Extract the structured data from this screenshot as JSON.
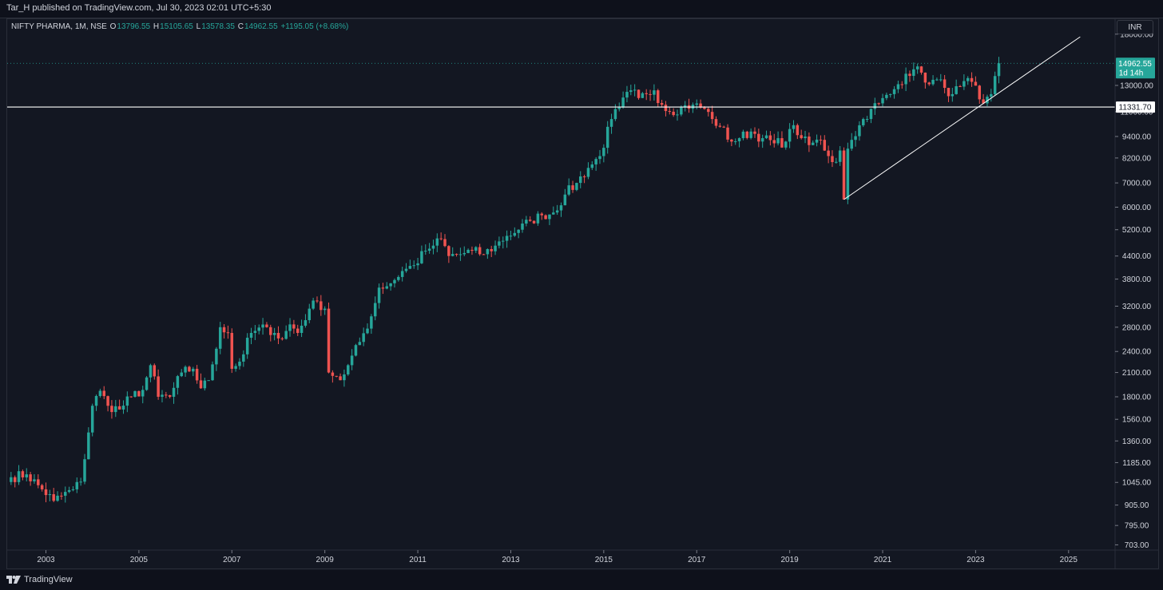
{
  "header": {
    "publish_text": "Tar_H published on TradingView.com, Jul 30, 2023 02:01 UTC+5:30"
  },
  "legend": {
    "symbol": "NIFTY PHARMA, 1M, NSE",
    "o_label": "O",
    "o_value": "13796.55",
    "h_label": "H",
    "h_value": "15105.65",
    "l_label": "L",
    "l_value": "13578.35",
    "c_label": "C",
    "c_value": "14962.55",
    "change": "+1195.05 (+8.68%)"
  },
  "currency_button": "INR",
  "footer": {
    "brand": "TradingView"
  },
  "colors": {
    "background": "#131722",
    "up": "#26a69a",
    "down": "#ef5350",
    "axis_text": "#d1d4dc",
    "line": "#ffffff"
  },
  "chart_data": {
    "type": "candlestick",
    "title": "",
    "y_scale": "log",
    "y_ticks": [
      "18000.00",
      "13000.00",
      "11000.00",
      "9400.00",
      "8200.00",
      "7000.00",
      "6000.00",
      "5200.00",
      "4400.00",
      "3800.00",
      "3200.00",
      "2800.00",
      "2400.00",
      "2100.00",
      "1800.00",
      "1560.00",
      "1360.00",
      "1185.00",
      "1045.00",
      "905.00",
      "795.00",
      "703.00"
    ],
    "x_ticks": [
      "2003",
      "2005",
      "2007",
      "2009",
      "2011",
      "2013",
      "2015",
      "2017",
      "2019",
      "2021",
      "2023",
      "2025"
    ],
    "ylim": [
      680,
      19800
    ],
    "xlim": [
      "2002-03",
      "2026-01"
    ],
    "last_price": {
      "value": "14962.55",
      "countdown": "1d 14h"
    },
    "horizontal_line": {
      "value": "11331.70"
    },
    "trend_line": {
      "start": {
        "date": "2020-03",
        "price": 6300
      },
      "end": {
        "date": "2025-04",
        "price": 17700
      }
    },
    "anchors": [
      [
        "2002-04",
        1080
      ],
      [
        "2002-08",
        1100
      ],
      [
        "2002-12",
        1000
      ],
      [
        "2003-03",
        930
      ],
      [
        "2003-08",
        1000
      ],
      [
        "2003-10",
        1050
      ],
      [
        "2004-01",
        1700
      ],
      [
        "2004-03",
        1870
      ],
      [
        "2004-05",
        1700
      ],
      [
        "2004-08",
        1660
      ],
      [
        "2004-11",
        1800
      ],
      [
        "2005-02",
        1880
      ],
      [
        "2005-04",
        2200
      ],
      [
        "2005-06",
        1800
      ],
      [
        "2005-09",
        1800
      ],
      [
        "2005-12",
        2100
      ],
      [
        "2006-03",
        2150
      ],
      [
        "2006-05",
        1900
      ],
      [
        "2006-07",
        2000
      ],
      [
        "2006-10",
        2800
      ],
      [
        "2006-12",
        2700
      ],
      [
        "2007-01",
        2150
      ],
      [
        "2007-03",
        2250
      ],
      [
        "2007-06",
        2700
      ],
      [
        "2007-10",
        2800
      ],
      [
        "2007-12",
        2700
      ],
      [
        "2008-02",
        2600
      ],
      [
        "2008-04",
        2850
      ],
      [
        "2008-06",
        2700
      ],
      [
        "2008-09",
        3150
      ],
      [
        "2008-11",
        3300
      ],
      [
        "2009-01",
        3150
      ],
      [
        "2009-02",
        2100
      ],
      [
        "2009-04",
        2050
      ],
      [
        "2009-05",
        2000
      ],
      [
        "2009-07",
        2200
      ],
      [
        "2009-10",
        2550
      ],
      [
        "2010-01",
        3000
      ],
      [
        "2010-03",
        3600
      ],
      [
        "2010-06",
        3700
      ],
      [
        "2010-09",
        4000
      ],
      [
        "2010-12",
        4150
      ],
      [
        "2011-03",
        4550
      ],
      [
        "2011-05",
        4700
      ],
      [
        "2011-07",
        4900
      ],
      [
        "2011-09",
        4400
      ],
      [
        "2011-12",
        4450
      ],
      [
        "2012-03",
        4550
      ],
      [
        "2012-06",
        4450
      ],
      [
        "2012-09",
        4700
      ],
      [
        "2012-12",
        5000
      ],
      [
        "2013-03",
        5200
      ],
      [
        "2013-06",
        5500
      ],
      [
        "2013-09",
        5700
      ],
      [
        "2013-12",
        5800
      ],
      [
        "2014-03",
        6500
      ],
      [
        "2014-06",
        7000
      ],
      [
        "2014-09",
        7700
      ],
      [
        "2014-12",
        8300
      ],
      [
        "2015-03",
        10500
      ],
      [
        "2015-05",
        11300
      ],
      [
        "2015-08",
        12600
      ],
      [
        "2015-10",
        12000
      ],
      [
        "2015-12",
        12300
      ],
      [
        "2016-02",
        12600
      ],
      [
        "2016-04",
        11500
      ],
      [
        "2016-06",
        11000
      ],
      [
        "2016-09",
        11300
      ],
      [
        "2016-12",
        11500
      ],
      [
        "2017-03",
        11200
      ],
      [
        "2017-05",
        10500
      ],
      [
        "2017-07",
        10000
      ],
      [
        "2017-10",
        9100
      ],
      [
        "2017-12",
        9300
      ],
      [
        "2018-03",
        9700
      ],
      [
        "2018-06",
        9300
      ],
      [
        "2018-09",
        9000
      ],
      [
        "2018-12",
        9100
      ],
      [
        "2019-02",
        10100
      ],
      [
        "2019-04",
        9300
      ],
      [
        "2019-06",
        8900
      ],
      [
        "2019-09",
        9200
      ],
      [
        "2019-11",
        8300
      ],
      [
        "2020-01",
        8000
      ],
      [
        "2020-02",
        8600
      ],
      [
        "2020-03",
        6300
      ],
      [
        "2020-04",
        8700
      ],
      [
        "2020-05",
        9200
      ],
      [
        "2020-08",
        10500
      ],
      [
        "2020-10",
        11200
      ],
      [
        "2020-12",
        11600
      ],
      [
        "2021-03",
        12300
      ],
      [
        "2021-05",
        13100
      ],
      [
        "2021-07",
        14000
      ],
      [
        "2021-09",
        14400
      ],
      [
        "2021-11",
        14100
      ],
      [
        "2022-01",
        13100
      ],
      [
        "2022-03",
        13500
      ],
      [
        "2022-05",
        12800
      ],
      [
        "2022-07",
        12300
      ],
      [
        "2022-09",
        12900
      ],
      [
        "2022-12",
        13300
      ],
      [
        "2023-02",
        11900
      ],
      [
        "2023-03",
        11600
      ],
      [
        "2023-04",
        12100
      ],
      [
        "2023-05",
        12300
      ],
      [
        "2023-06",
        13796.55
      ],
      [
        "2023-07",
        14962.55
      ]
    ]
  }
}
